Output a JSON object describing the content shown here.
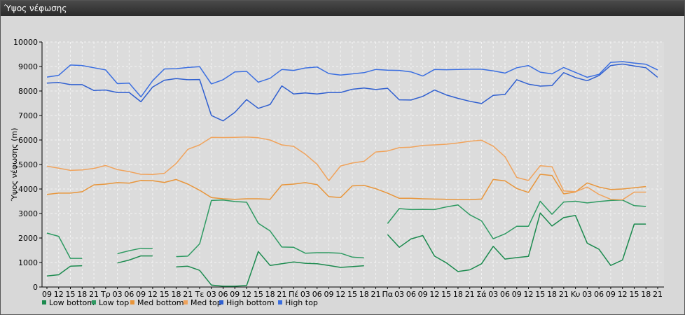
{
  "window": {
    "title": "Ύψος νέφωσης"
  },
  "chart_data": {
    "type": "line",
    "title": "",
    "ylabel": "Ύψος νέφωσης (m)",
    "xlabel": "",
    "ylim": [
      0,
      10000
    ],
    "yticks": [
      0,
      1000,
      2000,
      3000,
      4000,
      5000,
      6000,
      7000,
      8000,
      9000,
      10000
    ],
    "grid": true,
    "legend_position": "bottom-left",
    "x_labels": [
      "09",
      "12",
      "15",
      "18",
      "21",
      "Τρ",
      "03",
      "06",
      "09",
      "12",
      "15",
      "18",
      "21",
      "Τε",
      "03",
      "06",
      "09",
      "12",
      "15",
      "18",
      "21",
      "Πέ",
      "03",
      "06",
      "09",
      "12",
      "15",
      "18",
      "21",
      "Πα",
      "03",
      "06",
      "09",
      "12",
      "15",
      "18",
      "21",
      "Σά",
      "03",
      "06",
      "09",
      "12",
      "15",
      "18",
      "21",
      "Κυ",
      "03",
      "06",
      "09",
      "12",
      "15",
      "18",
      "21"
    ],
    "series": [
      {
        "name": "Low bottom",
        "color": "#1b8a4e",
        "values": [
          450,
          500,
          850,
          870,
          null,
          null,
          980,
          1100,
          1270,
          1270,
          null,
          820,
          850,
          680,
          80,
          30,
          30,
          60,
          1450,
          880,
          950,
          1020,
          970,
          950,
          880,
          800,
          830,
          870,
          null,
          2140,
          1620,
          1960,
          2100,
          1260,
          990,
          630,
          700,
          950,
          1660,
          1140,
          1200,
          1250,
          3020,
          2490,
          2830,
          2920,
          1790,
          1540,
          880,
          1100,
          2570,
          2570,
          null
        ]
      },
      {
        "name": "Low top",
        "color": "#2e9a62",
        "values": [
          2200,
          2070,
          1170,
          1170,
          null,
          null,
          1360,
          1480,
          1580,
          1570,
          null,
          1240,
          1260,
          1760,
          3530,
          3550,
          3490,
          3460,
          2600,
          2290,
          1630,
          1620,
          1380,
          1400,
          1400,
          1380,
          1220,
          1190,
          null,
          2590,
          3200,
          3160,
          3170,
          3160,
          3270,
          3350,
          2950,
          2700,
          1970,
          2170,
          2480,
          2480,
          3500,
          2970,
          3470,
          3500,
          3430,
          3490,
          3530,
          3550,
          3320,
          3290,
          null
        ]
      },
      {
        "name": "Med bottom",
        "color": "#e8953a",
        "values": [
          3780,
          3830,
          3830,
          3890,
          4170,
          4200,
          4260,
          4240,
          4350,
          4340,
          4270,
          4390,
          4200,
          3950,
          3650,
          3600,
          3580,
          3600,
          3600,
          3580,
          4170,
          4200,
          4260,
          4180,
          3690,
          3650,
          4130,
          4150,
          4010,
          3830,
          3620,
          3620,
          3600,
          3590,
          3580,
          3570,
          3570,
          3590,
          4390,
          4330,
          4020,
          3860,
          4600,
          4550,
          3800,
          3880,
          4250,
          4080,
          3980,
          4000,
          4050,
          4100,
          null
        ]
      },
      {
        "name": "Med top",
        "color": "#f0a35c",
        "values": [
          4930,
          4850,
          4760,
          4780,
          4840,
          4960,
          4790,
          4710,
          4600,
          4590,
          4640,
          5040,
          5620,
          5800,
          6110,
          6100,
          6110,
          6120,
          6090,
          6000,
          5800,
          5740,
          5420,
          5010,
          4340,
          4940,
          5060,
          5130,
          5510,
          5550,
          5690,
          5710,
          5780,
          5800,
          5830,
          5880,
          5950,
          5990,
          5750,
          5320,
          4470,
          4350,
          4950,
          4910,
          3920,
          3890,
          4080,
          3780,
          3580,
          3560,
          3870,
          3870,
          null
        ]
      },
      {
        "name": "High bottom",
        "color": "#2f5fd0",
        "values": [
          8320,
          8350,
          8260,
          8260,
          8020,
          8040,
          7940,
          7940,
          7560,
          8160,
          8440,
          8510,
          8460,
          8470,
          7000,
          6780,
          7130,
          7650,
          7290,
          7450,
          8210,
          7880,
          7920,
          7880,
          7940,
          7940,
          8070,
          8120,
          8060,
          8110,
          7640,
          7630,
          7780,
          8040,
          7840,
          7700,
          7580,
          7490,
          7820,
          7860,
          8460,
          8280,
          8200,
          8220,
          8750,
          8550,
          8420,
          8630,
          9040,
          9100,
          9020,
          8950,
          8560
        ]
      },
      {
        "name": "High top",
        "color": "#3a6ee0",
        "values": [
          8570,
          8640,
          9060,
          9040,
          8950,
          8860,
          8300,
          8320,
          7760,
          8420,
          8900,
          8910,
          8960,
          8990,
          8290,
          8460,
          8780,
          8800,
          8360,
          8520,
          8880,
          8840,
          8940,
          8980,
          8710,
          8650,
          8700,
          8750,
          8880,
          8850,
          8840,
          8780,
          8610,
          8880,
          8870,
          8880,
          8890,
          8890,
          8820,
          8730,
          8950,
          9040,
          8770,
          8700,
          8960,
          8760,
          8560,
          8680,
          9170,
          9200,
          9140,
          9090,
          8860
        ]
      }
    ]
  }
}
